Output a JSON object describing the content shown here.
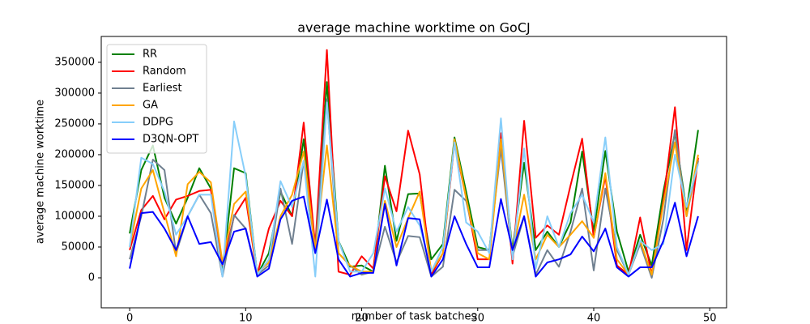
{
  "chart_data": {
    "type": "line",
    "title": "average machine worktime on GoCJ",
    "x_label": "number of task batches",
    "y_label": "average machine worktime",
    "x": [
      0,
      1,
      2,
      3,
      4,
      5,
      6,
      7,
      8,
      9,
      10,
      11,
      12,
      13,
      14,
      15,
      16,
      17,
      18,
      19,
      20,
      21,
      22,
      23,
      24,
      25,
      26,
      27,
      28,
      29,
      30,
      31,
      32,
      33,
      34,
      35,
      36,
      37,
      38,
      39,
      40,
      41,
      42,
      43,
      44,
      45,
      46,
      47,
      48,
      49
    ],
    "xlim": [
      -2.45,
      51.45
    ],
    "xticks": [
      0,
      10,
      20,
      30,
      40,
      50
    ],
    "ylim": [
      -48700,
      392000
    ],
    "yticks": [
      0,
      50000,
      100000,
      150000,
      200000,
      250000,
      300000,
      350000
    ],
    "legend": "upper left",
    "grid": false,
    "series": [
      {
        "name": "RR",
        "color": "#008000",
        "values": [
          72000,
          175000,
          215000,
          130000,
          88000,
          130000,
          178000,
          145000,
          10000,
          178000,
          170000,
          5000,
          40000,
          140000,
          100000,
          225000,
          50000,
          318000,
          60000,
          18000,
          20000,
          10000,
          182000,
          60000,
          136000,
          137000,
          30000,
          55000,
          228000,
          140000,
          50000,
          45000,
          225000,
          45000,
          187000,
          45000,
          75000,
          50000,
          90000,
          205000,
          75000,
          206000,
          75000,
          10000,
          70000,
          20000,
          140000,
          235000,
          110000,
          240000
        ]
      },
      {
        "name": "Random",
        "color": "#ff0000",
        "values": [
          45000,
          110000,
          133000,
          95000,
          127000,
          133000,
          141000,
          143000,
          20000,
          100000,
          130000,
          5000,
          80000,
          125000,
          100000,
          252000,
          50000,
          370000,
          10000,
          5000,
          35000,
          15000,
          165000,
          108000,
          239000,
          168000,
          5000,
          40000,
          220000,
          130000,
          30000,
          30000,
          235000,
          23000,
          255000,
          65000,
          85000,
          70000,
          150000,
          226000,
          65000,
          165000,
          20000,
          5000,
          98000,
          5000,
          125000,
          277000,
          45000,
          195000
        ]
      },
      {
        "name": "Earliest",
        "color": "#708090",
        "values": [
          30000,
          100000,
          192000,
          175000,
          40000,
          100000,
          135000,
          105000,
          2000,
          102000,
          80000,
          5000,
          20000,
          145000,
          55000,
          190000,
          45000,
          290000,
          40000,
          20000,
          5000,
          10000,
          83000,
          25000,
          68000,
          66000,
          2000,
          18000,
          143000,
          125000,
          45000,
          45000,
          210000,
          35000,
          100000,
          5000,
          45000,
          18000,
          75000,
          145000,
          12000,
          145000,
          45000,
          5000,
          55000,
          0,
          95000,
          240000,
          100000,
          190000
        ]
      },
      {
        "name": "GA",
        "color": "#ffa500",
        "values": [
          50000,
          145000,
          175000,
          105000,
          35000,
          152000,
          172000,
          155000,
          25000,
          120000,
          140000,
          8000,
          25000,
          100000,
          135000,
          205000,
          45000,
          215000,
          40000,
          20000,
          10000,
          10000,
          125000,
          50000,
          97000,
          140000,
          10000,
          40000,
          225000,
          130000,
          40000,
          30000,
          225000,
          40000,
          135000,
          30000,
          70000,
          50000,
          70000,
          92000,
          65000,
          170000,
          30000,
          5000,
          60000,
          5000,
          120000,
          220000,
          100000,
          200000
        ]
      },
      {
        "name": "DDPG",
        "color": "#87cefa",
        "values": [
          50000,
          195000,
          185000,
          140000,
          70000,
          100000,
          135000,
          135000,
          2000,
          254000,
          165000,
          5000,
          30000,
          157000,
          115000,
          190000,
          2000,
          285000,
          60000,
          10000,
          10000,
          40000,
          145000,
          75000,
          115000,
          85000,
          10000,
          50000,
          220000,
          90000,
          75000,
          40000,
          259000,
          30000,
          210000,
          15000,
          100000,
          50000,
          105000,
          135000,
          90000,
          228000,
          50000,
          5000,
          60000,
          45000,
          55000,
          200000,
          115000,
          185000
        ]
      },
      {
        "name": "D3QN-OPT",
        "color": "#0000ff",
        "values": [
          15000,
          105000,
          107000,
          80000,
          45000,
          100000,
          55000,
          58000,
          22000,
          75000,
          80000,
          2000,
          15000,
          95000,
          125000,
          132000,
          40000,
          127000,
          30000,
          2000,
          8000,
          8000,
          120000,
          20000,
          97000,
          95000,
          2000,
          30000,
          100000,
          55000,
          17000,
          17000,
          128000,
          45000,
          100000,
          2000,
          25000,
          30000,
          38000,
          67000,
          43000,
          80000,
          17000,
          2000,
          17000,
          17000,
          60000,
          122000,
          35000,
          100000
        ]
      }
    ]
  }
}
